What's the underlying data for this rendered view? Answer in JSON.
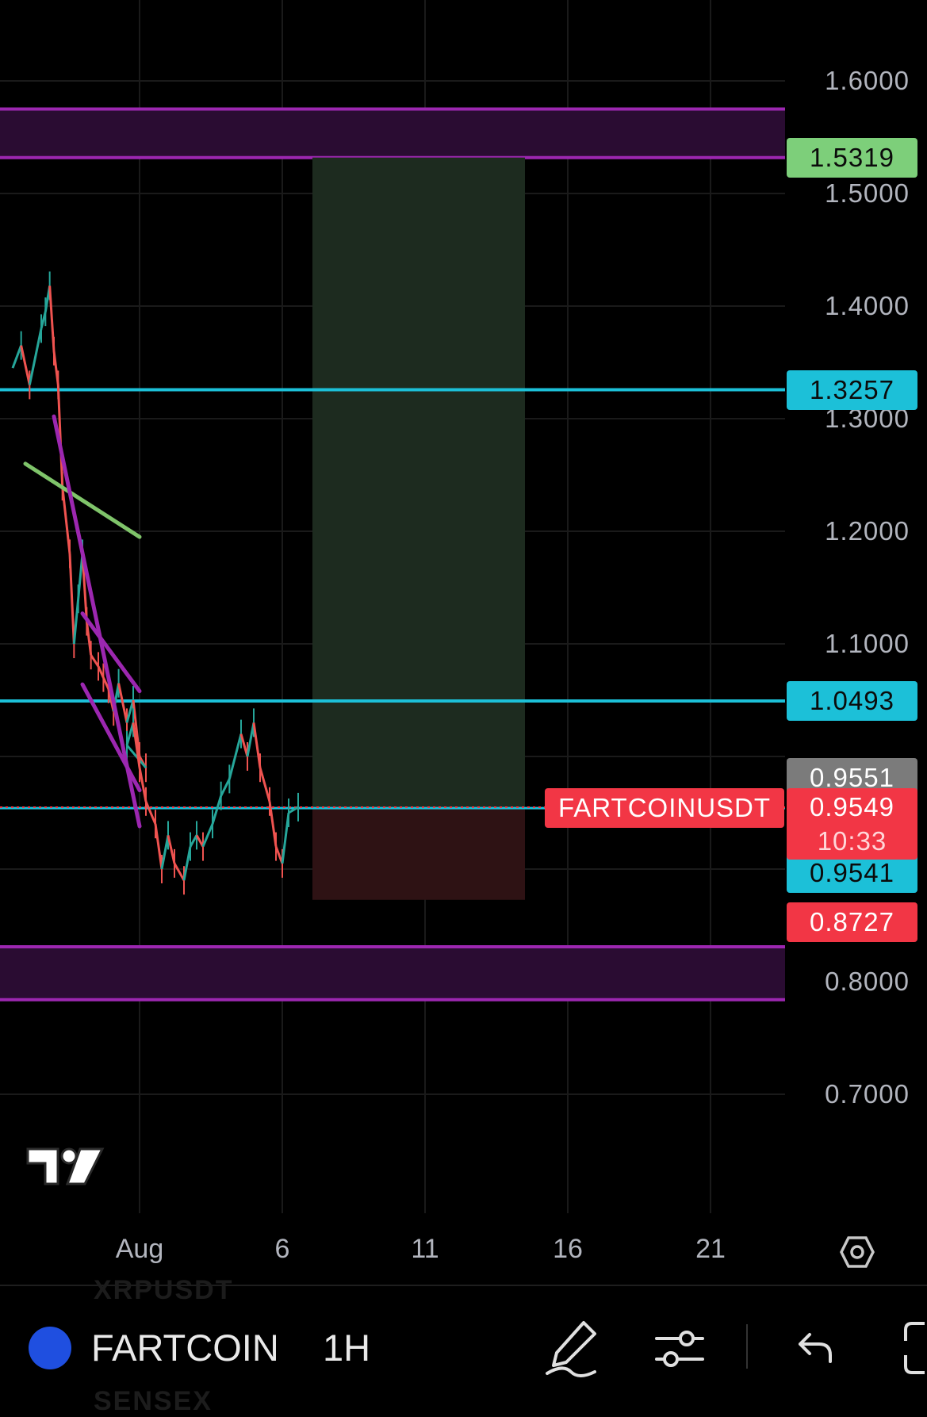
{
  "chart_data": {
    "type": "candlestick",
    "symbol": "FARTCOINUSDT",
    "interval": "1H",
    "y_ticks": [
      "1.6000",
      "1.5000",
      "1.4000",
      "1.3000",
      "1.2000",
      "1.1000",
      "0.8000",
      "0.7000"
    ],
    "ylim": [
      0.63,
      1.7
    ],
    "x_ticks": [
      "Aug",
      "6",
      "11",
      "16",
      "21"
    ],
    "price_tags": [
      {
        "label": "1.5319",
        "value": 1.5319,
        "color": "#7dcf7a"
      },
      {
        "label": "1.3257",
        "value": 1.3257,
        "color": "#1cc0d8"
      },
      {
        "label": "1.0493",
        "value": 1.0493,
        "color": "#1cc0d8"
      },
      {
        "label": "0.9551",
        "value": 0.9551,
        "color": "#7b7b7b"
      },
      {
        "label": "0.9541",
        "value": 0.9541,
        "color": "#1cc0d8"
      },
      {
        "label": "0.8727",
        "value": 0.8727,
        "color": "#f23645"
      }
    ],
    "last_price": {
      "symbol_label": "FARTCOINUSDT",
      "price": "0.9549",
      "countdown": "10:33",
      "value": 0.9549,
      "color": "#f23645"
    },
    "horizontal_lines": [
      {
        "value": 1.3257,
        "color": "#1cc0d8"
      },
      {
        "value": 1.0493,
        "color": "#1cc0d8"
      }
    ],
    "zones": [
      {
        "top": 1.575,
        "bottom": 1.5319,
        "color": "#9c27b0"
      },
      {
        "top": 0.831,
        "bottom": 0.784,
        "color": "#9c27b0"
      }
    ],
    "position": {
      "entry": 0.9541,
      "target": 1.5319,
      "stop": 0.8727,
      "start": "Aug 7",
      "end": "Aug 14"
    },
    "trendlines": [
      {
        "points": [
          [
            "Jul 27",
            1.26
          ],
          [
            "Aug 1",
            1.195
          ]
        ],
        "color": "#7fc46a"
      },
      {
        "points": [
          [
            "Jul 28",
            1.302
          ],
          [
            "Aug 1",
            0.938
          ]
        ],
        "color": "#9c27b0"
      },
      {
        "points": [
          [
            "Jul 29",
            1.127
          ],
          [
            "Jul 31",
            1.058
          ]
        ],
        "color": "#9c27b0"
      },
      {
        "points": [
          [
            "Jul 29",
            1.064
          ],
          [
            "Jul 31",
            0.97
          ]
        ],
        "color": "#9c27b0"
      }
    ],
    "price_path": [
      [
        "Jul 27",
        1.345
      ],
      [
        "Jul 27",
        1.365
      ],
      [
        "Jul 27",
        1.33
      ],
      [
        "Jul 28",
        1.38
      ],
      [
        "Jul 28",
        1.395
      ],
      [
        "Jul 28",
        1.418
      ],
      [
        "Jul 28",
        1.36
      ],
      [
        "Jul 28",
        1.33
      ],
      [
        "Jul 28",
        1.24
      ],
      [
        "Jul 29",
        1.18
      ],
      [
        "Jul 29",
        1.1
      ],
      [
        "Jul 29",
        1.14
      ],
      [
        "Jul 29",
        1.18
      ],
      [
        "Jul 29",
        1.12
      ],
      [
        "Jul 29",
        1.09
      ],
      [
        "Jul 30",
        1.08
      ],
      [
        "Jul 30",
        1.07
      ],
      [
        "Jul 30",
        1.06
      ],
      [
        "Jul 30",
        1.04
      ],
      [
        "Jul 30",
        1.065
      ],
      [
        "Jul 31",
        1.03
      ],
      [
        "Jul 31",
        1.05
      ],
      [
        "Jul 31",
        1.0
      ],
      [
        "Jul 31",
        0.99
      ],
      [
        "Aug 1",
        1.01
      ],
      [
        "Aug 1",
        1.03
      ],
      [
        "Aug 1",
        0.99
      ],
      [
        "Aug 1",
        0.96
      ],
      [
        "Aug 2",
        0.94
      ],
      [
        "Aug 2",
        0.9
      ],
      [
        "Aug 2",
        0.93
      ],
      [
        "Aug 2",
        0.905
      ],
      [
        "Aug 3",
        0.89
      ],
      [
        "Aug 3",
        0.92
      ],
      [
        "Aug 3",
        0.93
      ],
      [
        "Aug 3",
        0.92
      ],
      [
        "Aug 4",
        0.94
      ],
      [
        "Aug 4",
        0.965
      ],
      [
        "Aug 4",
        0.98
      ],
      [
        "Aug 5",
        1.02
      ],
      [
        "Aug 5",
        1.0
      ],
      [
        "Aug 5",
        1.03
      ],
      [
        "Aug 5",
        0.99
      ],
      [
        "Aug 6",
        0.96
      ],
      [
        "Aug 6",
        0.92
      ],
      [
        "Aug 6",
        0.905
      ],
      [
        "Aug 6",
        0.95
      ],
      [
        "Aug 7",
        0.955
      ]
    ]
  },
  "toolbar": {
    "symbol_short": "FARTCOIN",
    "interval": "1H",
    "ghost_above": "XRPUSDT",
    "ghost_below": "SENSEX"
  },
  "icons": [
    "tradingview-logo",
    "settings-icon",
    "pen-icon",
    "indicators-icon",
    "undo-icon",
    "fullscreen-icon"
  ]
}
